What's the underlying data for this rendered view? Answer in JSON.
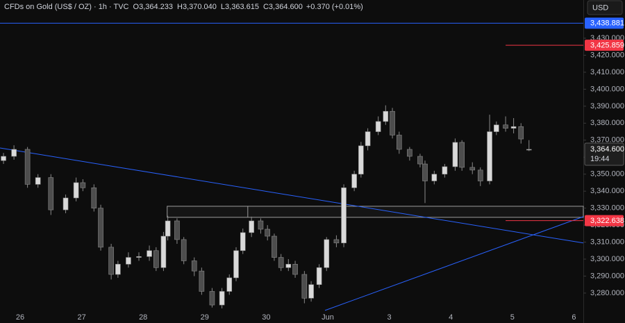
{
  "chart_data": {
    "type": "candlestick",
    "header": {
      "symbol": "CFDs on Gold (US$ / OZ) · 1h · TVC",
      "ohlc": [
        {
          "label": "O",
          "value": "3,364.233"
        },
        {
          "label": "H",
          "value": "3,370.040"
        },
        {
          "label": "L",
          "value": "3,363.615"
        },
        {
          "label": "C",
          "value": "3,364.600"
        }
      ],
      "change": "+0.370 (+0.01%)"
    },
    "currency": "USD",
    "up_color": "#d9d9d9",
    "down_color": "#4d4d4d",
    "wick_color": "#8a8a8a",
    "grid": false,
    "xlim": [
      -0.327,
      9.153
    ],
    "ylim": [
      3262.4,
      3452.5
    ],
    "xticks": [
      {
        "value": 0,
        "label": "26"
      },
      {
        "value": 1,
        "label": "27"
      },
      {
        "value": 2,
        "label": "28"
      },
      {
        "value": 3,
        "label": "29"
      },
      {
        "value": 4,
        "label": "30"
      },
      {
        "value": 5,
        "label": "Jun"
      },
      {
        "value": 6,
        "label": "3"
      },
      {
        "value": 7,
        "label": "4"
      },
      {
        "value": 8,
        "label": "5"
      },
      {
        "value": 9,
        "label": "6"
      }
    ],
    "yticks": [
      {
        "value": 3280,
        "label": "3,280.000"
      },
      {
        "value": 3290,
        "label": "3,290.000"
      },
      {
        "value": 3300,
        "label": "3,300.000"
      },
      {
        "value": 3310,
        "label": "3,310.000"
      },
      {
        "value": 3320,
        "label": "3,320.000"
      },
      {
        "value": 3330,
        "label": "3,330.000"
      },
      {
        "value": 3340,
        "label": "3,340.000"
      },
      {
        "value": 3350,
        "label": "3,350.000"
      },
      {
        "value": 3360,
        "label": "3,360.000"
      },
      {
        "value": 3370,
        "label": "3,370.000"
      },
      {
        "value": 3380,
        "label": "3,380.000"
      },
      {
        "value": 3390,
        "label": "3,390.000"
      },
      {
        "value": 3400,
        "label": "3,400.000"
      },
      {
        "value": 3410,
        "label": "3,410.000"
      },
      {
        "value": 3420,
        "label": "3,420.000"
      },
      {
        "value": 3430,
        "label": "3,430.000"
      }
    ],
    "x": [
      -0.27,
      -0.1,
      0.12,
      0.29,
      0.5,
      0.74,
      0.91,
      1.02,
      1.2,
      1.31,
      1.48,
      1.59,
      1.76,
      1.93,
      2.1,
      2.21,
      2.33,
      2.4,
      2.55,
      2.66,
      2.83,
      2.95,
      3.12,
      3.28,
      3.4,
      3.51,
      3.62,
      3.76,
      3.91,
      4.02,
      4.13,
      4.24,
      4.36,
      4.47,
      4.62,
      4.73,
      4.86,
      4.98,
      5.14,
      5.26,
      5.43,
      5.54,
      5.65,
      5.82,
      5.94,
      6.05,
      6.16,
      6.33,
      6.5,
      6.58,
      6.73,
      6.9,
      7.07,
      7.18,
      7.35,
      7.48,
      7.63,
      7.74,
      7.89,
      8.02,
      8.14,
      8.27
    ],
    "open": [
      3358,
      3360.5,
      3364.6,
      3344,
      3348,
      3329,
      3336,
      3345,
      3342,
      3330,
      3307,
      3291,
      3297,
      3301,
      3301.5,
      3305,
      3295,
      3313.5,
      3322.5,
      3311.5,
      3299,
      3293,
      3281,
      3273,
      3281,
      3289,
      3305,
      3315.6,
      3322.5,
      3317.6,
      3313.5,
      3301,
      3295,
      3297,
      3291,
      3277,
      3285,
      3295,
      3311.5,
      3309.5,
      3342,
      3350,
      3366.7,
      3375,
      3381,
      3387,
      3373,
      3364.6,
      3360.5,
      3356,
      3346,
      3350,
      3354.4,
      3368.7,
      3354,
      3352.4,
      3346,
      3375,
      3379,
      3377,
      3378,
      3364.233
    ],
    "high": [
      3362.5,
      3367,
      3366,
      3350,
      3350,
      3338,
      3348,
      3347,
      3344,
      3332,
      3309,
      3299,
      3304,
      3304,
      3308,
      3307,
      3316,
      3325.5,
      3324,
      3313,
      3301,
      3295,
      3283,
      3283,
      3291,
      3307,
      3318,
      3325,
      3324,
      3320,
      3315,
      3303,
      3300,
      3299,
      3293,
      3287,
      3297,
      3313,
      3314,
      3344,
      3352,
      3369,
      3377,
      3384,
      3390.5,
      3389,
      3375,
      3366,
      3362,
      3358,
      3352,
      3356,
      3371,
      3370,
      3357,
      3354,
      3385,
      3381,
      3384,
      3383,
      3380,
      3370.04
    ],
    "low": [
      3356,
      3358.5,
      3342,
      3342,
      3326,
      3327,
      3334,
      3340,
      3328,
      3305,
      3288,
      3289,
      3295,
      3299,
      3299,
      3293,
      3293,
      3311,
      3309,
      3297,
      3290,
      3279,
      3271.5,
      3271,
      3279,
      3287,
      3303,
      3313,
      3315,
      3311,
      3299,
      3293,
      3293,
      3289,
      3274,
      3275,
      3283,
      3293,
      3307,
      3307,
      3340,
      3348,
      3364,
      3373,
      3379,
      3371,
      3362,
      3358,
      3354,
      3333,
      3344,
      3348,
      3352,
      3352,
      3350,
      3343,
      3344,
      3373,
      3375,
      3374,
      3368,
      3363.615
    ],
    "close": [
      3360.5,
      3364.6,
      3344,
      3348,
      3329,
      3336,
      3345,
      3342,
      3330,
      3307,
      3291,
      3297,
      3301,
      3301.5,
      3305,
      3295,
      3313.5,
      3322.5,
      3311.5,
      3299,
      3293,
      3281,
      3273,
      3281,
      3289,
      3305,
      3315.6,
      3322.5,
      3317.6,
      3313.5,
      3301,
      3295,
      3297,
      3291,
      3277,
      3285,
      3295,
      3311.5,
      3309.5,
      3342,
      3350,
      3366.7,
      3375,
      3381,
      3387,
      3373,
      3364.6,
      3360.5,
      3356,
      3346,
      3350,
      3354.4,
      3368.7,
      3354,
      3352.4,
      3346,
      3375,
      3379,
      3377,
      3378,
      3370.7,
      3364.6
    ],
    "price_levels": [
      {
        "value": 3438.881,
        "label": "3,438.881",
        "color": "#2962ff",
        "start_x": -0.327
      },
      {
        "value": 3425.859,
        "label": "3,425.859",
        "color": "#f23645",
        "start_x": 7.89
      },
      {
        "value": 3322.638,
        "label": "3,322.638",
        "color": "#f23645",
        "start_x": 7.89
      }
    ],
    "current": {
      "value": 3364.6,
      "label": "3,364.600",
      "countdown": "19:44"
    },
    "trendlines": [
      {
        "x": [
          -0.327,
          9.153
        ],
        "y": [
          3365.4,
          3309.5
        ],
        "color": "#2962ff"
      },
      {
        "x": [
          4.955,
          9.153
        ],
        "y": [
          3269.8,
          3325
        ],
        "color": "#2962ff"
      }
    ],
    "zone": {
      "x": [
        2.39,
        9.153
      ],
      "y": [
        3324.6,
        3331.1
      ],
      "divider_x": 3.7,
      "color": "#9e9e9e"
    }
  }
}
